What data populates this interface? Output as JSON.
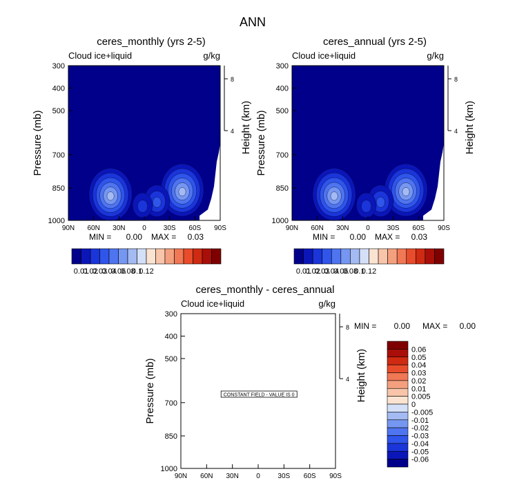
{
  "main_title": "ANN",
  "colors": {
    "background": "#ffffff",
    "field_fill": "#00008b",
    "abs_scale": [
      "#00008b",
      "#0b16b8",
      "#1a35d9",
      "#2f55ea",
      "#4f74ef",
      "#7597f1",
      "#a3baf3",
      "#d3e0f7",
      "#fbe3d2",
      "#f8c5aa",
      "#f4a07f",
      "#f07855",
      "#e84c2b",
      "#cf2a12",
      "#a90f08",
      "#7f0000"
    ],
    "diff_scale": [
      "#00008b",
      "#0b16b8",
      "#1a35d9",
      "#2f55ea",
      "#4f74ef",
      "#7597f1",
      "#a3baf3",
      "#d3e0f7",
      "#fbe3d2",
      "#f8c5aa",
      "#f4a07f",
      "#f07855",
      "#e84c2b",
      "#cf2a12",
      "#a90f08",
      "#7f0000"
    ]
  },
  "chart_data": [
    {
      "type": "heatmap",
      "panel": "top-left",
      "title": "ceres_monthly (yrs 2-5)",
      "variable": "Cloud ice+liquid",
      "units": "g/kg",
      "xlabel": "",
      "ylabel": "Pressure (mb)",
      "y2label": "Height (km)",
      "x_ticks": [
        "90N",
        "60N",
        "30N",
        "0",
        "30S",
        "60S",
        "90S"
      ],
      "y_ticks": [
        "300",
        "400",
        "500",
        "700",
        "850",
        "1000"
      ],
      "y2_ticks": [
        "8",
        "4"
      ],
      "ylim": [
        1000,
        300
      ],
      "min_label": "MIN =",
      "min_value": "0.00",
      "max_label": "MAX =",
      "max_value": "0.03",
      "blobs": [
        {
          "lat": 40,
          "pressure": 880,
          "level": 6
        },
        {
          "lat": -45,
          "pressure": 860,
          "level": 6
        },
        {
          "lat": -15,
          "pressure": 910,
          "level": 3
        },
        {
          "lat": 2,
          "pressure": 930,
          "level": 2
        }
      ],
      "colorbar_labels": [
        "0.01",
        "0.02",
        "0.03",
        "0.04",
        "0.06",
        "0.08",
        "0.1",
        "0.12"
      ]
    },
    {
      "type": "heatmap",
      "panel": "top-right",
      "title": "ceres_annual (yrs 2-5)",
      "variable": "Cloud ice+liquid",
      "units": "g/kg",
      "xlabel": "",
      "ylabel": "Pressure (mb)",
      "y2label": "Height (km)",
      "x_ticks": [
        "90N",
        "60N",
        "30N",
        "0",
        "30S",
        "60S",
        "90S"
      ],
      "y_ticks": [
        "300",
        "400",
        "500",
        "700",
        "850",
        "1000"
      ],
      "y2_ticks": [
        "8",
        "4"
      ],
      "ylim": [
        1000,
        300
      ],
      "min_label": "MIN =",
      "min_value": "0.00",
      "max_label": "MAX =",
      "max_value": "0.03",
      "blobs": [
        {
          "lat": 40,
          "pressure": 880,
          "level": 6
        },
        {
          "lat": -45,
          "pressure": 860,
          "level": 6
        },
        {
          "lat": -15,
          "pressure": 910,
          "level": 3
        },
        {
          "lat": 2,
          "pressure": 930,
          "level": 2
        }
      ],
      "colorbar_labels": [
        "0.01",
        "0.02",
        "0.03",
        "0.04",
        "0.06",
        "0.08",
        "0.1",
        "0.12"
      ]
    },
    {
      "type": "heatmap",
      "panel": "bottom",
      "title": "ceres_monthly - ceres_annual",
      "variable": "Cloud ice+liquid",
      "units": "g/kg",
      "xlabel": "",
      "ylabel": "Pressure (mb)",
      "y2label": "Height (km)",
      "x_ticks": [
        "90N",
        "60N",
        "30N",
        "0",
        "30S",
        "60S",
        "90S"
      ],
      "y_ticks": [
        "300",
        "400",
        "500",
        "700",
        "850",
        "1000"
      ],
      "y2_ticks": [
        "8",
        "4"
      ],
      "ylim": [
        1000,
        300
      ],
      "min_label": "MIN =",
      "min_value": "0.00",
      "max_label": "MAX =",
      "max_value": "0.00",
      "constant_field_note": "CONSTANT FIELD - VALUE IS 0",
      "colorbar_labels": [
        "0.06",
        "0.05",
        "0.04",
        "0.03",
        "0.02",
        "0.01",
        "0.005",
        "0",
        "-0.005",
        "-0.01",
        "-0.02",
        "-0.03",
        "-0.04",
        "-0.05",
        "-0.06"
      ]
    }
  ]
}
